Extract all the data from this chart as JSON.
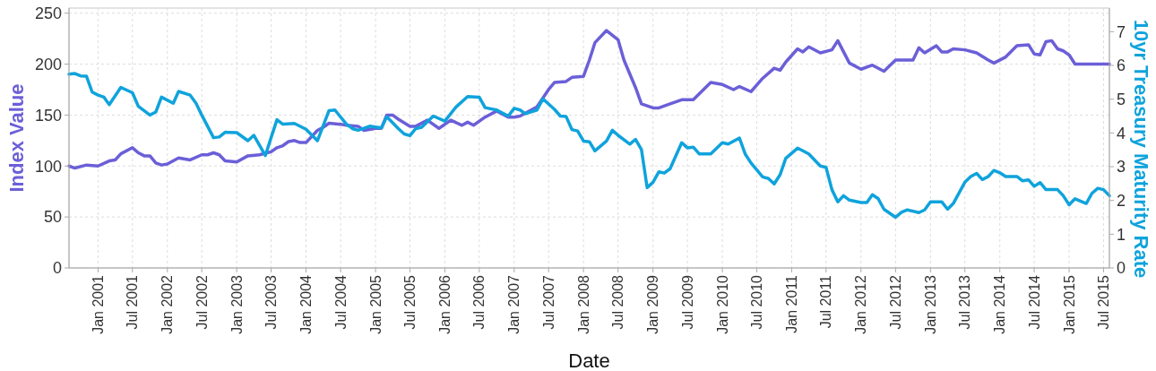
{
  "chart_data": {
    "type": "line",
    "xlabel": "Date",
    "ylabel": "Index Value",
    "y2label": "10yr Treasury Maturity Rate",
    "xlim": [
      "2000-08",
      "2015-08"
    ],
    "ylim": [
      0,
      255
    ],
    "yticks": [
      0,
      50,
      100,
      150,
      200,
      250
    ],
    "y2lim": [
      0,
      7.7
    ],
    "y2ticks": [
      0,
      1,
      2,
      3,
      4,
      5,
      6,
      7
    ],
    "xticks": [
      {
        "value": "2001-01",
        "label": "Jan 2001"
      },
      {
        "value": "2001-07",
        "label": "Jul 2001"
      },
      {
        "value": "2002-01",
        "label": "Jan 2002"
      },
      {
        "value": "2002-07",
        "label": "Jul 2002"
      },
      {
        "value": "2003-01",
        "label": "Jan 2003"
      },
      {
        "value": "2003-07",
        "label": "Jul 2003"
      },
      {
        "value": "2004-01",
        "label": "Jan 2004"
      },
      {
        "value": "2004-07",
        "label": "Jul 2004"
      },
      {
        "value": "2005-01",
        "label": "Jan 2005"
      },
      {
        "value": "2005-07",
        "label": "Jul 2005"
      },
      {
        "value": "2006-01",
        "label": "Jan 2006"
      },
      {
        "value": "2006-07",
        "label": "Jul 2006"
      },
      {
        "value": "2007-01",
        "label": "Jan 2007"
      },
      {
        "value": "2007-07",
        "label": "Jul 2007"
      },
      {
        "value": "2008-01",
        "label": "Jan 2008"
      },
      {
        "value": "2008-07",
        "label": "Jul 2008"
      },
      {
        "value": "2009-01",
        "label": "Jan 2009"
      },
      {
        "value": "2009-07",
        "label": "Jul 2009"
      },
      {
        "value": "2010-01",
        "label": "Jan 2010"
      },
      {
        "value": "2010-07",
        "label": "Jul 2010"
      },
      {
        "value": "2011-01",
        "label": "Jan 2011"
      },
      {
        "value": "2011-07",
        "label": "Jul 2011"
      },
      {
        "value": "2012-01",
        "label": "Jan 2012"
      },
      {
        "value": "2012-07",
        "label": "Jul 2012"
      },
      {
        "value": "2013-01",
        "label": "Jan 2013"
      },
      {
        "value": "2013-07",
        "label": "Jul 2013"
      },
      {
        "value": "2014-01",
        "label": "Jan 2014"
      },
      {
        "value": "2014-07",
        "label": "Jul 2014"
      },
      {
        "value": "2015-01",
        "label": "Jan 2015"
      },
      {
        "value": "2015-07",
        "label": "Jul 2015"
      }
    ],
    "grid": true,
    "marker": "none",
    "line_style": "solid",
    "series": [
      {
        "color": "#6b5fd8",
        "x": [
          "2000-08",
          "2000-09",
          "2000-11",
          "2001-01",
          "2001-03",
          "2001-04",
          "2001-05",
          "2001-07",
          "2001-08",
          "2001-09",
          "2001-10",
          "2001-11",
          "2001-12",
          "2002-01",
          "2002-03",
          "2002-05",
          "2002-07",
          "2002-08",
          "2002-09",
          "2002-10",
          "2002-11",
          "2003-01",
          "2003-03",
          "2003-05",
          "2003-07",
          "2003-08",
          "2003-09",
          "2003-10",
          "2003-11",
          "2003-12",
          "2004-01",
          "2004-03",
          "2004-04",
          "2004-05",
          "2004-07",
          "2004-08",
          "2004-10",
          "2004-11",
          "2005-01",
          "2005-02",
          "2005-03",
          "2005-04",
          "2005-05",
          "2005-07",
          "2005-08",
          "2005-10",
          "2005-12",
          "2006-02",
          "2006-04",
          "2006-05",
          "2006-06",
          "2006-08",
          "2006-10",
          "2006-12",
          "2007-01",
          "2007-02",
          "2007-05",
          "2007-07",
          "2007-08",
          "2007-10",
          "2007-11",
          "2008-01",
          "2008-02",
          "2008-03",
          "2008-05",
          "2008-07",
          "2008-08",
          "2008-10",
          "2008-11",
          "2009-01",
          "2009-02",
          "2009-04",
          "2009-06",
          "2009-08",
          "2009-11",
          "2010-01",
          "2010-03",
          "2010-04",
          "2010-06",
          "2010-08",
          "2010-10",
          "2010-11",
          "2010-12",
          "2011-02",
          "2011-03",
          "2011-04",
          "2011-06",
          "2011-08",
          "2011-09",
          "2011-11",
          "2012-01",
          "2012-03",
          "2012-05",
          "2012-07",
          "2012-10",
          "2012-11",
          "2012-12",
          "2013-02",
          "2013-03",
          "2013-04",
          "2013-05",
          "2013-07",
          "2013-09",
          "2013-11",
          "2013-12",
          "2014-02",
          "2014-04",
          "2014-06",
          "2014-07",
          "2014-08",
          "2014-09",
          "2014-10",
          "2014-11",
          "2014-12",
          "2015-01",
          "2015-02",
          "2015-05",
          "2015-08"
        ],
        "values": [
          100,
          98,
          101,
          100,
          105,
          106,
          112,
          118,
          113,
          110,
          110,
          103,
          101,
          102,
          108,
          106,
          111,
          111,
          113,
          111,
          105,
          104,
          110,
          111,
          114,
          118,
          120,
          124,
          125,
          123,
          123,
          135,
          138,
          142,
          141,
          140,
          139,
          135,
          137,
          137,
          150,
          150,
          146,
          139,
          139,
          145,
          137,
          145,
          140,
          143,
          140,
          148,
          154,
          148,
          148,
          149,
          158,
          175,
          182,
          183,
          187,
          188,
          204,
          221,
          233,
          224,
          204,
          177,
          161,
          157,
          157,
          161,
          165,
          165,
          182,
          180,
          175,
          178,
          173,
          186,
          196,
          194,
          202,
          215,
          212,
          217,
          211,
          214,
          223,
          201,
          195,
          199,
          193,
          204,
          204,
          216,
          211,
          218,
          212,
          212,
          215,
          214,
          211,
          204,
          201,
          207,
          218,
          219,
          210,
          209,
          222,
          223,
          215,
          213,
          209,
          200,
          200,
          200
        ]
      },
      {
        "color": "#0fa3dc",
        "axis": "y2",
        "x": [
          "2000-08",
          "2000-09",
          "2000-10",
          "2000-11",
          "2000-12",
          "2001-01",
          "2001-02",
          "2001-03",
          "2001-05",
          "2001-07",
          "2001-08",
          "2001-10",
          "2001-11",
          "2001-12",
          "2002-02",
          "2002-03",
          "2002-05",
          "2002-06",
          "2002-07",
          "2002-09",
          "2002-10",
          "2002-11",
          "2003-01",
          "2003-03",
          "2003-04",
          "2003-06",
          "2003-07",
          "2003-08",
          "2003-09",
          "2003-11",
          "2004-01",
          "2004-03",
          "2004-05",
          "2004-06",
          "2004-08",
          "2004-09",
          "2004-10",
          "2004-12",
          "2005-02",
          "2005-03",
          "2005-05",
          "2005-06",
          "2005-07",
          "2005-08",
          "2005-09",
          "2005-11",
          "2006-01",
          "2006-03",
          "2006-05",
          "2006-07",
          "2006-08",
          "2006-10",
          "2006-12",
          "2007-01",
          "2007-02",
          "2007-03",
          "2007-05",
          "2007-06",
          "2007-08",
          "2007-09",
          "2007-10",
          "2007-11",
          "2007-12",
          "2008-01",
          "2008-02",
          "2008-03",
          "2008-05",
          "2008-06",
          "2008-07",
          "2008-09",
          "2008-10",
          "2008-11",
          "2008-12",
          "2009-01",
          "2009-02",
          "2009-03",
          "2009-04",
          "2009-06",
          "2009-07",
          "2009-08",
          "2009-09",
          "2009-11",
          "2010-01",
          "2010-02",
          "2010-04",
          "2010-05",
          "2010-06",
          "2010-08",
          "2010-09",
          "2010-10",
          "2010-11",
          "2010-12",
          "2011-02",
          "2011-03",
          "2011-04",
          "2011-06",
          "2011-07",
          "2011-08",
          "2011-09",
          "2011-10",
          "2011-11",
          "2012-01",
          "2012-02",
          "2012-03",
          "2012-04",
          "2012-05",
          "2012-07",
          "2012-08",
          "2012-09",
          "2012-11",
          "2012-12",
          "2013-01",
          "2013-03",
          "2013-04",
          "2013-05",
          "2013-07",
          "2013-08",
          "2013-09",
          "2013-10",
          "2013-11",
          "2013-12",
          "2014-01",
          "2014-02",
          "2014-04",
          "2014-05",
          "2014-06",
          "2014-07",
          "2014-08",
          "2014-09",
          "2014-11",
          "2014-12",
          "2015-01",
          "2015-02",
          "2015-04",
          "2015-05",
          "2015-06",
          "2015-07",
          "2015-08"
        ],
        "values": [
          5.74,
          5.76,
          5.69,
          5.68,
          5.21,
          5.12,
          5.06,
          4.84,
          5.35,
          5.19,
          4.79,
          4.53,
          4.62,
          5.06,
          4.88,
          5.23,
          5.12,
          4.88,
          4.53,
          3.86,
          3.88,
          4.02,
          4.01,
          3.77,
          3.93,
          3.33,
          3.86,
          4.39,
          4.26,
          4.28,
          4.11,
          3.77,
          4.66,
          4.68,
          4.26,
          4.13,
          4.08,
          4.2,
          4.15,
          4.48,
          4.13,
          3.97,
          3.92,
          4.13,
          4.17,
          4.5,
          4.35,
          4.77,
          5.08,
          5.06,
          4.75,
          4.68,
          4.5,
          4.73,
          4.68,
          4.57,
          4.68,
          5.01,
          4.7,
          4.5,
          4.49,
          4.1,
          4.06,
          3.76,
          3.74,
          3.47,
          3.76,
          4.08,
          3.93,
          3.67,
          3.81,
          3.51,
          2.38,
          2.54,
          2.85,
          2.81,
          2.94,
          3.71,
          3.56,
          3.58,
          3.38,
          3.38,
          3.71,
          3.67,
          3.85,
          3.38,
          3.11,
          2.7,
          2.65,
          2.49,
          2.76,
          3.25,
          3.55,
          3.47,
          3.38,
          3.02,
          2.98,
          2.32,
          1.96,
          2.14,
          2.01,
          1.94,
          1.94,
          2.17,
          2.05,
          1.74,
          1.5,
          1.65,
          1.72,
          1.64,
          1.72,
          1.96,
          1.96,
          1.74,
          1.91,
          2.54,
          2.71,
          2.8,
          2.62,
          2.71,
          2.89,
          2.82,
          2.71,
          2.71,
          2.58,
          2.61,
          2.42,
          2.53,
          2.32,
          2.32,
          2.14,
          1.87,
          2.05,
          1.91,
          2.21,
          2.36,
          2.32,
          2.14
        ]
      }
    ]
  }
}
